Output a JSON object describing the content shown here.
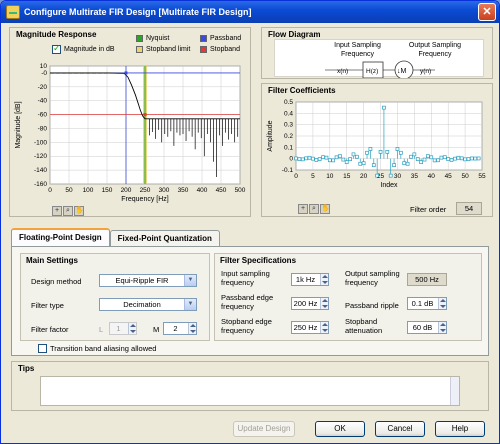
{
  "window": {
    "title": "Configure Multirate FIR Design [Multirate FIR Design]",
    "close": "✕"
  },
  "magnitude": {
    "title": "Magnitude Response",
    "checkbox_label": "Magnitude in dB",
    "legend": [
      {
        "label": "Nyquist",
        "color": "#27a627"
      },
      {
        "label": "Passband",
        "color": "#3b4bdc"
      },
      {
        "label": "Stopband limit",
        "color": "#e8d470"
      },
      {
        "label": "Stopband",
        "color": "#e03a3a"
      }
    ],
    "tools": [
      "+",
      "⌕",
      "✋"
    ]
  },
  "flow": {
    "title": "Flow Diagram",
    "input_label": "Input Sampling Frequency",
    "output_label": "Output Sampling Frequency",
    "xn": "x(n)",
    "filter": "H(z)",
    "decimator": "↓M",
    "yn": "y(n)"
  },
  "coeffs": {
    "title": "Filter Coefficients",
    "filter_order_label": "Filter order",
    "filter_order": "54",
    "tools": [
      "+",
      "⌕",
      "✋"
    ]
  },
  "tabs": [
    {
      "label": "Floating-Point Design"
    },
    {
      "label": "Fixed-Point Quantization"
    }
  ],
  "main_settings": {
    "title": "Main Settings",
    "design_method_label": "Design method",
    "design_method": "Equi-Ripple FIR",
    "filter_type_label": "Filter type",
    "filter_type": "Decimation",
    "filter_factor_label": "Filter factor",
    "l_label": "L",
    "l_value": "1",
    "m_label": "M",
    "m_value": "2"
  },
  "filter_specs": {
    "title": "Filter Specifications",
    "input_fs_label": "Input sampling frequency",
    "input_fs": "1k Hz",
    "output_fs_label": "Output sampling frequency",
    "output_fs": "500 Hz",
    "passband_edge_label": "Passband edge frequency",
    "passband_edge": "200 Hz",
    "passband_ripple_label": "Passband ripple",
    "passband_ripple": "0.1 dB",
    "stopband_edge_label": "Stopband edge frequency",
    "stopband_edge": "250 Hz",
    "stopband_atten_label": "Stopband attenuation",
    "stopband_atten": "60 dB"
  },
  "transition_label": "Transition band aliasing allowed",
  "tips": {
    "title": "Tips",
    "text": ""
  },
  "buttons": {
    "update": "Update Design",
    "ok": "OK",
    "cancel": "Cancel",
    "help": "Help"
  },
  "chart_data": [
    {
      "type": "line",
      "title": "Magnitude Response",
      "xlabel": "Frequency [Hz]",
      "ylabel": "Magnitude [dB]",
      "xlim": [
        0,
        500
      ],
      "ylim": [
        -160,
        10
      ],
      "xticks": [
        "0",
        "50",
        "100",
        "150",
        "200",
        "250",
        "300",
        "350",
        "400",
        "450",
        "500"
      ],
      "yticks": [
        "10",
        "-0",
        "-20",
        "-40",
        "-60",
        "-80",
        "-100",
        "-120",
        "-140",
        "-160"
      ],
      "grid": true,
      "markers": {
        "passband_hz": 200,
        "stopband_hz": 250,
        "nyquist_hz": 250,
        "passband_db": 0,
        "stopband_db": -60
      },
      "series": [
        {
          "name": "Magnitude",
          "x": [
            0,
            150,
            195,
            205,
            215,
            225,
            232,
            238,
            244,
            250,
            500
          ],
          "y": [
            0,
            0,
            -0.5,
            -6,
            -18,
            -32,
            -44,
            -54,
            -62,
            -66,
            -66
          ]
        }
      ],
      "notches_hz": [
        262,
        270,
        278,
        286,
        294,
        302,
        310,
        318,
        326,
        334,
        342,
        350,
        358,
        366,
        374,
        382,
        390,
        398,
        406,
        414,
        422,
        430,
        438,
        446,
        454,
        462,
        470,
        478,
        486,
        494
      ],
      "notch_depth_db": [
        -90,
        -85,
        -95,
        -82,
        -100,
        -88,
        -92,
        -84,
        -105,
        -86,
        -90,
        -88,
        -98,
        -84,
        -92,
        -110,
        -86,
        -94,
        -120,
        -88,
        -100,
        -128,
        -150,
        -90,
        -105,
        -86,
        -96,
        -88,
        -100,
        -92
      ]
    },
    {
      "type": "scatter",
      "title": "Filter Coefficients",
      "xlabel": "Index",
      "ylabel": "Amplitude",
      "xlim": [
        0,
        55
      ],
      "ylim": [
        -0.1,
        0.5
      ],
      "xticks": [
        "0",
        "5",
        "10",
        "15",
        "20",
        "25",
        "30",
        "35",
        "40",
        "45",
        "50",
        "55"
      ],
      "yticks": [
        "0.5",
        "0.4",
        "0.3",
        "0.2",
        "0.1",
        "0",
        "-0.1"
      ],
      "grid": true,
      "x": [
        0,
        1,
        2,
        3,
        4,
        5,
        6,
        7,
        8,
        9,
        10,
        11,
        12,
        13,
        14,
        15,
        16,
        17,
        18,
        19,
        20,
        21,
        22,
        23,
        24,
        25,
        26,
        27,
        28,
        29,
        30,
        31,
        32,
        33,
        34,
        35,
        36,
        37,
        38,
        39,
        40,
        41,
        42,
        43,
        44,
        45,
        46,
        47,
        48,
        49,
        50,
        51,
        52,
        53,
        54
      ],
      "y": [
        0.002,
        -0.004,
        -0.006,
        0.003,
        0.008,
        0,
        -0.011,
        -0.004,
        0.013,
        0.009,
        -0.014,
        -0.015,
        0.012,
        0.022,
        -0.008,
        -0.031,
        -0.004,
        0.038,
        0.017,
        -0.045,
        -0.04,
        0.052,
        0.085,
        -0.057,
        -0.15,
        0.06,
        0.45,
        0.06,
        -0.15,
        -0.057,
        0.085,
        0.052,
        -0.04,
        -0.045,
        0.017,
        0.038,
        -0.004,
        -0.031,
        -0.008,
        0.022,
        0.012,
        -0.015,
        -0.014,
        0.009,
        0.013,
        -0.004,
        -0.011,
        0,
        0.008,
        0.003,
        -0.006,
        -0.004,
        0.002,
        0.001,
        0.002
      ]
    }
  ]
}
